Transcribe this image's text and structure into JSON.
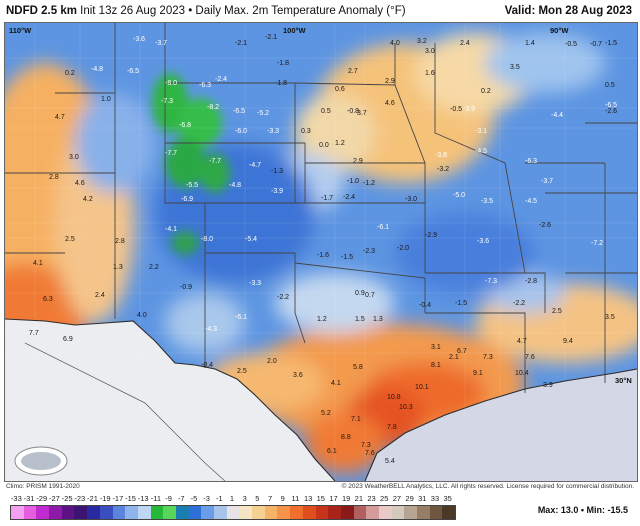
{
  "header": {
    "product": "NDFD 2.5 km",
    "subtitle": "Init 13z 26 Aug 2023 • Daily Max. 2m Temperature Anomaly (°F)",
    "valid": "Valid: Mon 28 Aug 2023"
  },
  "map": {
    "coords": [
      "110°W",
      "100°W",
      "90°W",
      "30°N"
    ],
    "values": [
      [
        "-3.6",
        "light"
      ],
      [
        "-3.7",
        "light"
      ],
      [
        "-2.1",
        ""
      ],
      [
        "-2.1",
        ""
      ],
      [
        "4.0",
        ""
      ],
      [
        "3.2",
        ""
      ],
      [
        "3.0",
        ""
      ],
      [
        "2.4",
        ""
      ],
      [
        "1.4",
        ""
      ],
      [
        "-0.5",
        ""
      ],
      [
        "-0.7",
        ""
      ],
      [
        "-1.5",
        ""
      ],
      [
        "-4.8",
        "light"
      ],
      [
        "-6.5",
        "light"
      ],
      [
        "-8.0",
        "light"
      ],
      [
        "-1.8",
        ""
      ],
      [
        "1.6",
        ""
      ],
      [
        "3.5",
        ""
      ],
      [
        "0.2",
        ""
      ],
      [
        "0.5",
        ""
      ],
      [
        "-7.3",
        "light"
      ],
      [
        "-6.3",
        "light"
      ],
      [
        "-2.4",
        "light"
      ],
      [
        "-1.8",
        ""
      ],
      [
        "2.7",
        ""
      ],
      [
        "2.9",
        ""
      ],
      [
        "0.6",
        ""
      ],
      [
        "-0.8",
        ""
      ],
      [
        "-2.6",
        ""
      ],
      [
        "1.0",
        ""
      ],
      [
        "-8.2",
        "light"
      ],
      [
        "-6.5",
        "light"
      ],
      [
        "-5.2",
        "light"
      ],
      [
        "0.5",
        ""
      ],
      [
        "3.7",
        ""
      ],
      [
        "4.6",
        ""
      ],
      [
        "-0.5",
        ""
      ],
      [
        "0.2",
        ""
      ],
      [
        "-6.5",
        "light"
      ],
      [
        "4.7",
        ""
      ],
      [
        "-6.8",
        "light"
      ],
      [
        "-6.0",
        "light"
      ],
      [
        "-3.3",
        "light"
      ],
      [
        "0.3",
        ""
      ],
      [
        "1.2",
        ""
      ],
      [
        "-3.9",
        "light"
      ],
      [
        "-3.1",
        "light"
      ],
      [
        "-4.4",
        "light"
      ],
      [
        "3.0",
        ""
      ],
      [
        "-7.7",
        "light"
      ],
      [
        "-7.7",
        "light"
      ],
      [
        "-4.7",
        "light"
      ],
      [
        "-1.3",
        ""
      ],
      [
        "0.0",
        ""
      ],
      [
        "2.9",
        ""
      ],
      [
        "-3.8",
        "light"
      ],
      [
        "-4.5",
        "light"
      ],
      [
        "-6.3",
        "light"
      ],
      [
        "2.8",
        ""
      ],
      [
        "4.6",
        ""
      ],
      [
        "-5.5",
        "light"
      ],
      [
        "-4.8",
        "light"
      ],
      [
        "-3.9",
        "light"
      ],
      [
        "-1.0",
        ""
      ],
      [
        "-1.2",
        ""
      ],
      [
        "-3.2",
        ""
      ],
      [
        "-5.0",
        "light"
      ],
      [
        "-3.7",
        "light"
      ],
      [
        "4.2",
        ""
      ],
      [
        "-6.9",
        "light"
      ],
      [
        "-1.7",
        ""
      ],
      [
        "-2.4",
        ""
      ],
      [
        "-3.0",
        ""
      ],
      [
        "-3.5",
        "light"
      ],
      [
        "-4.5",
        "light"
      ],
      [
        "2.5",
        ""
      ],
      [
        "2.8",
        ""
      ],
      [
        "-4.1",
        "light"
      ],
      [
        "-8.0",
        "light"
      ],
      [
        "-5.4",
        "light"
      ],
      [
        "-6.1",
        "light"
      ],
      [
        "-2.9",
        ""
      ],
      [
        "-3.6",
        "light"
      ],
      [
        "-2.6",
        ""
      ],
      [
        "4.1",
        ""
      ],
      [
        "1.3",
        ""
      ],
      [
        "2.2",
        ""
      ],
      [
        "-3.3",
        "light"
      ],
      [
        "-1.6",
        ""
      ],
      [
        "-1.5",
        ""
      ],
      [
        "-2.3",
        ""
      ],
      [
        "-2.0",
        ""
      ],
      [
        "-7.3",
        "light"
      ],
      [
        "-2.8",
        ""
      ],
      [
        "-7.2",
        "light"
      ],
      [
        "6.3",
        ""
      ],
      [
        "2.4",
        ""
      ],
      [
        "4.0",
        ""
      ],
      [
        "-0.9",
        ""
      ],
      [
        "-2.2",
        ""
      ],
      [
        "0.9",
        ""
      ],
      [
        "0.7",
        ""
      ],
      [
        "-0.4",
        ""
      ],
      [
        "-1.5",
        ""
      ],
      [
        "-2.2",
        ""
      ],
      [
        "2.5",
        ""
      ],
      [
        "3.5",
        ""
      ],
      [
        "7.7",
        ""
      ],
      [
        "6.9",
        ""
      ],
      [
        "-4.3",
        "light"
      ],
      [
        "-6.1",
        "light"
      ],
      [
        "1.2",
        ""
      ],
      [
        "1.5",
        ""
      ],
      [
        "1.3",
        ""
      ],
      [
        "3.1",
        ""
      ],
      [
        "4.7",
        ""
      ],
      [
        "2.1",
        ""
      ],
      [
        "-0.4",
        ""
      ],
      [
        "2.5",
        ""
      ],
      [
        "2.0",
        ""
      ],
      [
        "3.6",
        ""
      ],
      [
        "5.8",
        ""
      ],
      [
        "6.7",
        ""
      ],
      [
        "7.3",
        ""
      ],
      [
        "7.6",
        ""
      ],
      [
        "9.4",
        ""
      ],
      [
        "4.1",
        ""
      ],
      [
        "8.1",
        ""
      ],
      [
        "9.1",
        ""
      ],
      [
        "10.1",
        ""
      ],
      [
        "10.4",
        ""
      ],
      [
        "3.9",
        ""
      ],
      [
        "5.2",
        ""
      ],
      [
        "10.3",
        ""
      ],
      [
        "10.8",
        ""
      ],
      [
        "7.3",
        ""
      ],
      [
        "6.1",
        ""
      ],
      [
        "7.1",
        ""
      ],
      [
        "7.8",
        ""
      ],
      [
        "8.8",
        ""
      ],
      [
        "7.6",
        ""
      ],
      [
        "5.4",
        ""
      ]
    ]
  },
  "footer": {
    "climo": "Climo: PRISM 1991-2020",
    "copyright": "© 2023 WeatherBELL Analytics, LLC. All rights reserved. License required for commercial distribution."
  },
  "legend": {
    "ticks": [
      "-33",
      "-31",
      "-29",
      "-27",
      "-25",
      "-23",
      "-21",
      "-19",
      "-17",
      "-15",
      "-13",
      "-11",
      "-9",
      "-7",
      "-5",
      "-3",
      "-1",
      "1",
      "3",
      "5",
      "7",
      "9",
      "11",
      "13",
      "15",
      "17",
      "19",
      "21",
      "23",
      "25",
      "27",
      "29",
      "31",
      "33",
      "35"
    ],
    "colors": [
      "#f2a0ef",
      "#e35fe0",
      "#c02bd1",
      "#8f1aa8",
      "#5c1285",
      "#3a1470",
      "#2a2aa0",
      "#3a4ec2",
      "#5b84dd",
      "#8fb4ec",
      "#bcd6f3",
      "#25b83a",
      "#58d65a",
      "#1a7fb0",
      "#2f6fd8",
      "#6a9ce8",
      "#a9c4ea",
      "#e6e2e6",
      "#f4e6c5",
      "#f6cf92",
      "#f5b36a",
      "#f59448",
      "#f06f2c",
      "#e04d1e",
      "#c8341a",
      "#a8241a",
      "#8a1a1a",
      "#b06060",
      "#d59a9a",
      "#e9c8c8",
      "#d4c9bd",
      "#b7a593",
      "#977d66",
      "#6e5640",
      "#4b3826"
    ],
    "maxmin": "Max: 13.0 • Min: -15.5"
  }
}
